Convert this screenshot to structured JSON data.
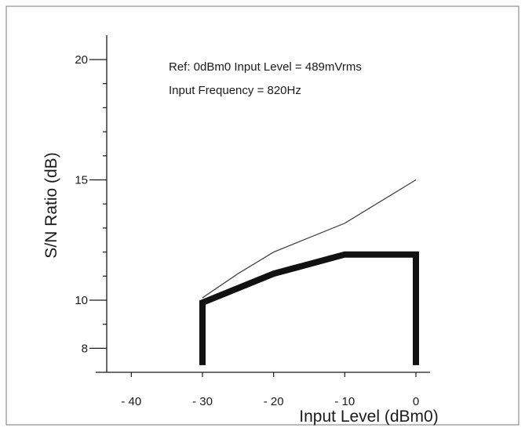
{
  "chart_data": {
    "type": "line",
    "title": "",
    "xlabel": "Input Level (dBm0)",
    "ylabel": "S/N Ratio (dB)",
    "xlim": [
      -43,
      3
    ],
    "ylim": [
      7,
      21
    ],
    "x_ticks": [
      -40,
      -30,
      -20,
      -10,
      0
    ],
    "x_tick_labels": [
      "- 40",
      "- 30",
      "- 20",
      "- 10",
      "0"
    ],
    "y_ticks": [
      8,
      10,
      15,
      20
    ],
    "y_tick_labels": [
      "8",
      "10",
      "15",
      "20"
    ],
    "y_minor_ticks": [
      9,
      11,
      12,
      13,
      14,
      16,
      17,
      18,
      19
    ],
    "annotations": [
      "Ref: 0dBm0 Input Level = 489mVrms",
      "Input Frequency = 820Hz"
    ],
    "grid": false,
    "legend": "none",
    "series": [
      {
        "style": "thin",
        "color": "#444444",
        "x": [
          -30,
          -25,
          -20,
          -15,
          -10,
          -5,
          0
        ],
        "y": [
          10.1,
          11.1,
          12.0,
          12.6,
          13.2,
          14.1,
          15.0
        ]
      },
      {
        "style": "thick-limit",
        "color": "#111111",
        "x": [
          -30,
          -30,
          -20,
          -10,
          0,
          0
        ],
        "y": [
          7.3,
          9.9,
          11.1,
          11.9,
          11.9,
          7.3
        ]
      }
    ]
  }
}
